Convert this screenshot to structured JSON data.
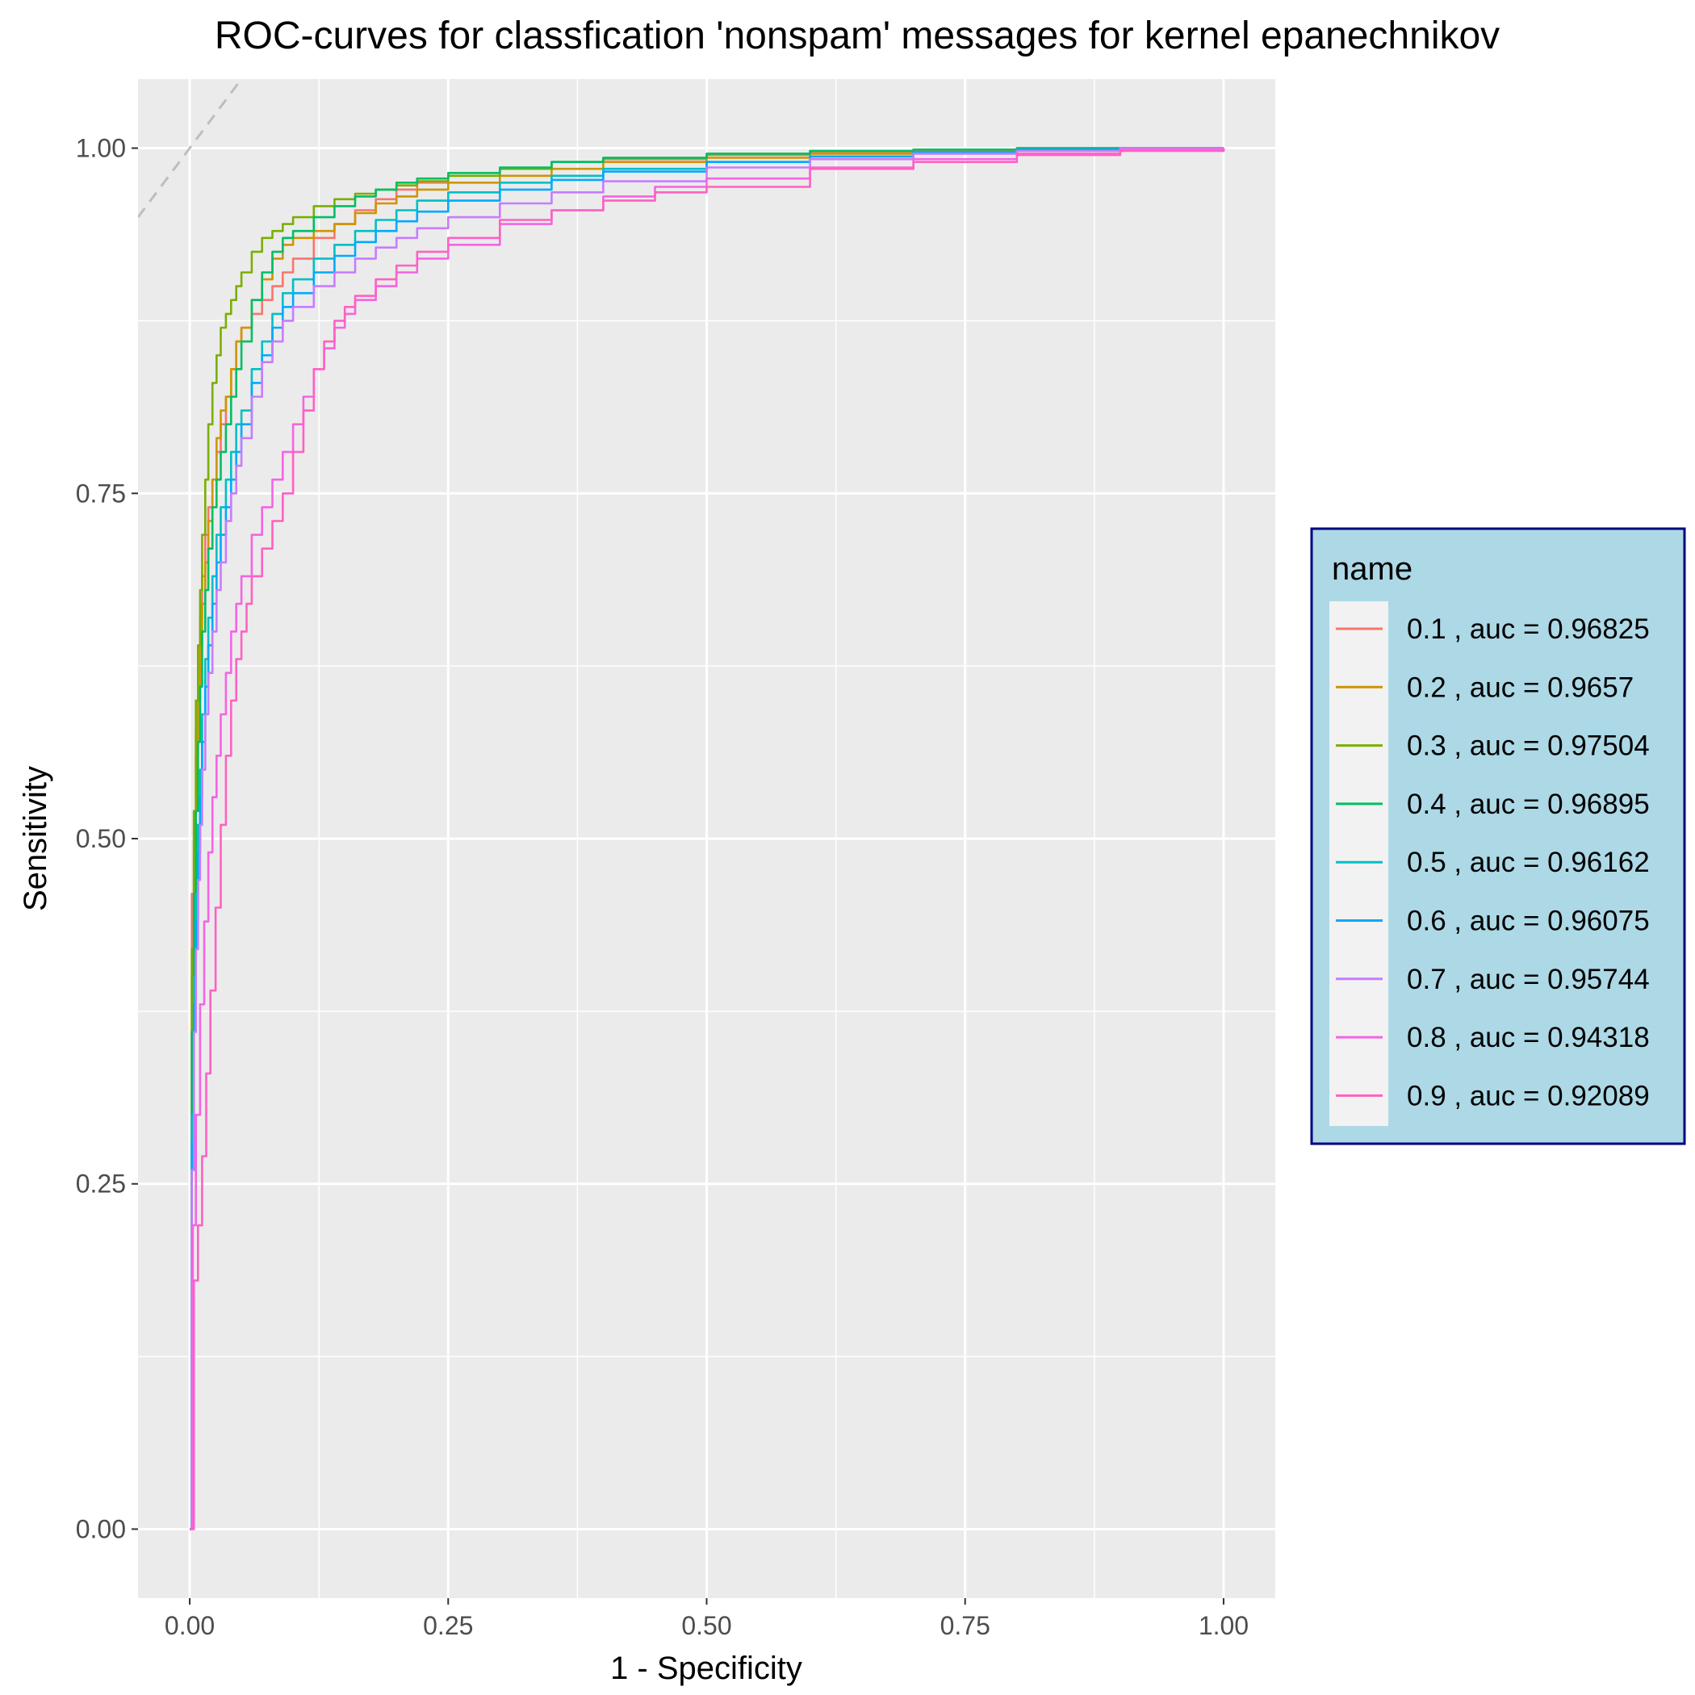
{
  "chart_data": {
    "type": "line",
    "title": "ROC-curves for classfication 'nonspam' messages for kernel epanechnikov",
    "xlabel": "1 - Specificity",
    "ylabel": "Sensitivity",
    "xlim": [
      -0.05,
      1.05
    ],
    "ylim": [
      -0.05,
      1.05
    ],
    "x_ticks": [
      0,
      0.25,
      0.5,
      0.75,
      1
    ],
    "y_ticks": [
      0,
      0.25,
      0.5,
      0.75,
      1
    ],
    "x_tick_labels": [
      "0.00",
      "0.25",
      "0.50",
      "0.75",
      "1.00"
    ],
    "y_tick_labels": [
      "0.00",
      "0.25",
      "0.50",
      "0.75",
      "1.00"
    ],
    "grid": true,
    "legend": {
      "title": "name",
      "position": "right"
    },
    "diagonal_reference": true,
    "colors": {
      "panel": "#ebebeb",
      "grid": "#ffffff",
      "legend_bg": "#add8e6",
      "legend_border": "#000080",
      "diagonal": "#bebebe"
    },
    "series": [
      {
        "name": "0.1 , auc = 0.96825",
        "color": "#F8766D",
        "x": [
          0,
          0.002,
          0.004,
          0.006,
          0.008,
          0.01,
          0.012,
          0.015,
          0.018,
          0.022,
          0.026,
          0.03,
          0.035,
          0.04,
          0.045,
          0.05,
          0.06,
          0.07,
          0.08,
          0.09,
          0.1,
          0.12,
          0.14,
          0.16,
          0.18,
          0.2,
          0.22,
          0.25,
          0.3,
          0.35,
          0.4,
          0.5,
          0.6,
          0.7,
          0.8,
          0.9,
          1.0
        ],
        "y": [
          0,
          0.46,
          0.52,
          0.58,
          0.62,
          0.66,
          0.69,
          0.72,
          0.74,
          0.76,
          0.78,
          0.8,
          0.82,
          0.84,
          0.86,
          0.87,
          0.88,
          0.89,
          0.9,
          0.91,
          0.92,
          0.935,
          0.945,
          0.955,
          0.963,
          0.97,
          0.975,
          0.98,
          0.985,
          0.99,
          0.992,
          0.995,
          0.997,
          0.998,
          0.999,
          1.0,
          1.0
        ]
      },
      {
        "name": "0.2 , auc = 0.9657",
        "color": "#CD9600",
        "x": [
          0,
          0.002,
          0.004,
          0.006,
          0.008,
          0.01,
          0.012,
          0.015,
          0.018,
          0.022,
          0.026,
          0.03,
          0.035,
          0.04,
          0.045,
          0.05,
          0.06,
          0.07,
          0.08,
          0.09,
          0.1,
          0.12,
          0.14,
          0.16,
          0.18,
          0.2,
          0.22,
          0.25,
          0.3,
          0.35,
          0.4,
          0.5,
          0.6,
          0.7,
          0.8,
          0.9,
          1.0
        ],
        "y": [
          0,
          0.4,
          0.5,
          0.56,
          0.6,
          0.64,
          0.67,
          0.7,
          0.73,
          0.76,
          0.79,
          0.81,
          0.82,
          0.84,
          0.86,
          0.87,
          0.89,
          0.905,
          0.92,
          0.93,
          0.935,
          0.94,
          0.945,
          0.953,
          0.96,
          0.965,
          0.97,
          0.975,
          0.98,
          0.985,
          0.99,
          0.993,
          0.996,
          0.997,
          0.998,
          0.999,
          1.0
        ]
      },
      {
        "name": "0.3 , auc = 0.97504",
        "color": "#7CAE00",
        "x": [
          0,
          0.002,
          0.004,
          0.006,
          0.008,
          0.01,
          0.012,
          0.015,
          0.018,
          0.022,
          0.026,
          0.03,
          0.035,
          0.04,
          0.045,
          0.05,
          0.06,
          0.07,
          0.08,
          0.09,
          0.1,
          0.12,
          0.14,
          0.16,
          0.18,
          0.2,
          0.22,
          0.25,
          0.3,
          0.35,
          0.4,
          0.5,
          0.6,
          0.7,
          0.8,
          0.9,
          1.0
        ],
        "y": [
          0,
          0.42,
          0.52,
          0.6,
          0.64,
          0.68,
          0.72,
          0.76,
          0.8,
          0.83,
          0.85,
          0.87,
          0.88,
          0.89,
          0.9,
          0.91,
          0.925,
          0.935,
          0.94,
          0.945,
          0.95,
          0.958,
          0.963,
          0.967,
          0.97,
          0.973,
          0.976,
          0.98,
          0.985,
          0.99,
          0.993,
          0.996,
          0.998,
          0.999,
          1.0,
          1.0,
          1.0
        ]
      },
      {
        "name": "0.4 , auc = 0.96895",
        "color": "#00BE67",
        "x": [
          0,
          0.002,
          0.004,
          0.006,
          0.008,
          0.01,
          0.012,
          0.015,
          0.018,
          0.022,
          0.026,
          0.03,
          0.035,
          0.04,
          0.045,
          0.05,
          0.06,
          0.07,
          0.08,
          0.09,
          0.1,
          0.12,
          0.14,
          0.16,
          0.18,
          0.2,
          0.22,
          0.25,
          0.3,
          0.35,
          0.4,
          0.5,
          0.6,
          0.7,
          0.8,
          0.9,
          1.0
        ],
        "y": [
          0,
          0.36,
          0.46,
          0.52,
          0.57,
          0.61,
          0.65,
          0.68,
          0.71,
          0.74,
          0.76,
          0.78,
          0.8,
          0.82,
          0.84,
          0.86,
          0.89,
          0.91,
          0.925,
          0.935,
          0.94,
          0.95,
          0.958,
          0.965,
          0.97,
          0.975,
          0.978,
          0.982,
          0.986,
          0.99,
          0.993,
          0.996,
          0.998,
          0.999,
          1.0,
          1.0,
          1.0
        ]
      },
      {
        "name": "0.5 , auc = 0.96162",
        "color": "#00BFC4",
        "x": [
          0,
          0.002,
          0.004,
          0.006,
          0.008,
          0.01,
          0.012,
          0.015,
          0.018,
          0.022,
          0.026,
          0.03,
          0.035,
          0.04,
          0.045,
          0.05,
          0.06,
          0.07,
          0.08,
          0.09,
          0.1,
          0.12,
          0.14,
          0.16,
          0.18,
          0.2,
          0.22,
          0.25,
          0.3,
          0.35,
          0.4,
          0.5,
          0.6,
          0.7,
          0.8,
          0.9,
          1.0
        ],
        "y": [
          0,
          0.3,
          0.4,
          0.46,
          0.51,
          0.55,
          0.59,
          0.63,
          0.66,
          0.69,
          0.72,
          0.74,
          0.76,
          0.78,
          0.8,
          0.81,
          0.84,
          0.86,
          0.88,
          0.895,
          0.905,
          0.92,
          0.93,
          0.94,
          0.948,
          0.955,
          0.962,
          0.968,
          0.975,
          0.98,
          0.985,
          0.99,
          0.994,
          0.997,
          0.999,
          1.0,
          1.0
        ]
      },
      {
        "name": "0.6 , auc = 0.96075",
        "color": "#00A9FF",
        "x": [
          0,
          0.002,
          0.004,
          0.006,
          0.008,
          0.01,
          0.012,
          0.015,
          0.018,
          0.022,
          0.026,
          0.03,
          0.035,
          0.04,
          0.045,
          0.05,
          0.06,
          0.07,
          0.08,
          0.09,
          0.1,
          0.12,
          0.14,
          0.16,
          0.18,
          0.2,
          0.22,
          0.25,
          0.3,
          0.35,
          0.4,
          0.5,
          0.6,
          0.7,
          0.8,
          0.9,
          1.0
        ],
        "y": [
          0,
          0.28,
          0.38,
          0.44,
          0.49,
          0.53,
          0.57,
          0.61,
          0.64,
          0.67,
          0.7,
          0.72,
          0.74,
          0.76,
          0.78,
          0.8,
          0.83,
          0.85,
          0.87,
          0.885,
          0.895,
          0.91,
          0.922,
          0.932,
          0.94,
          0.947,
          0.954,
          0.962,
          0.97,
          0.977,
          0.983,
          0.99,
          0.994,
          0.997,
          0.999,
          1.0,
          1.0
        ]
      },
      {
        "name": "0.7 , auc = 0.95744",
        "color": "#C77CFF",
        "x": [
          0,
          0.002,
          0.004,
          0.006,
          0.008,
          0.01,
          0.012,
          0.015,
          0.018,
          0.022,
          0.026,
          0.03,
          0.035,
          0.04,
          0.045,
          0.05,
          0.06,
          0.07,
          0.08,
          0.09,
          0.1,
          0.12,
          0.14,
          0.16,
          0.18,
          0.2,
          0.22,
          0.25,
          0.3,
          0.35,
          0.4,
          0.5,
          0.6,
          0.7,
          0.8,
          0.9,
          1.0
        ],
        "y": [
          0,
          0.26,
          0.36,
          0.42,
          0.47,
          0.51,
          0.55,
          0.59,
          0.62,
          0.65,
          0.68,
          0.7,
          0.73,
          0.75,
          0.77,
          0.79,
          0.82,
          0.845,
          0.86,
          0.875,
          0.885,
          0.9,
          0.91,
          0.92,
          0.928,
          0.935,
          0.942,
          0.95,
          0.96,
          0.968,
          0.976,
          0.986,
          0.992,
          0.996,
          0.998,
          1.0,
          1.0
        ],
        "_color_note": "#619CFF"
      },
      {
        "name": "0.8 , auc = 0.94318",
        "color": "#F564E3",
        "x": [
          0,
          0.003,
          0.006,
          0.01,
          0.014,
          0.018,
          0.022,
          0.026,
          0.03,
          0.035,
          0.04,
          0.045,
          0.05,
          0.06,
          0.07,
          0.08,
          0.09,
          0.1,
          0.11,
          0.12,
          0.13,
          0.14,
          0.15,
          0.16,
          0.18,
          0.2,
          0.22,
          0.25,
          0.3,
          0.35,
          0.4,
          0.45,
          0.5,
          0.6,
          0.7,
          0.8,
          0.9,
          1.0
        ],
        "y": [
          0,
          0.22,
          0.3,
          0.38,
          0.44,
          0.49,
          0.53,
          0.56,
          0.59,
          0.62,
          0.65,
          0.67,
          0.69,
          0.72,
          0.74,
          0.76,
          0.78,
          0.8,
          0.82,
          0.84,
          0.855,
          0.87,
          0.88,
          0.89,
          0.9,
          0.91,
          0.92,
          0.93,
          0.945,
          0.955,
          0.965,
          0.972,
          0.978,
          0.986,
          0.992,
          0.996,
          0.999,
          1.0
        ]
      },
      {
        "name": "0.9 , auc = 0.92089",
        "color": "#FF61C3",
        "x": [
          0,
          0.004,
          0.008,
          0.012,
          0.016,
          0.02,
          0.025,
          0.03,
          0.035,
          0.04,
          0.045,
          0.05,
          0.055,
          0.06,
          0.07,
          0.08,
          0.09,
          0.1,
          0.11,
          0.12,
          0.13,
          0.14,
          0.15,
          0.16,
          0.18,
          0.2,
          0.22,
          0.25,
          0.3,
          0.35,
          0.4,
          0.45,
          0.5,
          0.6,
          0.7,
          0.8,
          0.9,
          1.0
        ],
        "y": [
          0,
          0.18,
          0.22,
          0.27,
          0.33,
          0.39,
          0.45,
          0.51,
          0.56,
          0.6,
          0.63,
          0.65,
          0.67,
          0.69,
          0.71,
          0.73,
          0.75,
          0.78,
          0.81,
          0.84,
          0.86,
          0.875,
          0.885,
          0.893,
          0.905,
          0.915,
          0.925,
          0.935,
          0.948,
          0.955,
          0.962,
          0.968,
          0.972,
          0.985,
          0.99,
          0.995,
          0.998,
          1.0
        ]
      }
    ]
  }
}
